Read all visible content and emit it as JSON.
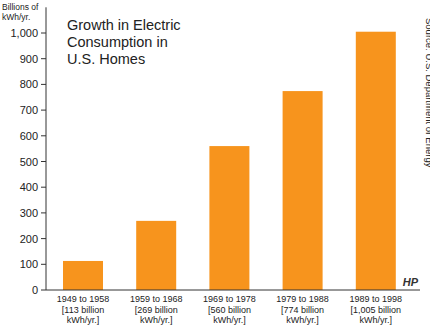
{
  "chart_data": {
    "type": "bar",
    "title": "Growth in Electric Consumption in U.S. Homes",
    "y_label": "Billions of kWh/yr.",
    "categories": [
      "1949 to 1958 [113 billion kWh/yr.]",
      "1959 to 1968 [269 billion kWh/yr.]",
      "1969 to 1978 [560 billion kWh/yr.]",
      "1979 to 1988 [774 billion kWh/yr.]",
      "1989 to 1998 [1,005 billion kWh/yr.]"
    ],
    "values": [
      113,
      269,
      560,
      774,
      1005
    ],
    "color": "#f7941d",
    "ylim": [
      0,
      1100
    ],
    "yticks": [
      0,
      100,
      200,
      300,
      400,
      500,
      600,
      700,
      800,
      900,
      {
        "value": 1000,
        "label": "1,000"
      }
    ],
    "grid": false,
    "annotations": [
      "Source: U.S. Department of Energy",
      "HP"
    ]
  }
}
